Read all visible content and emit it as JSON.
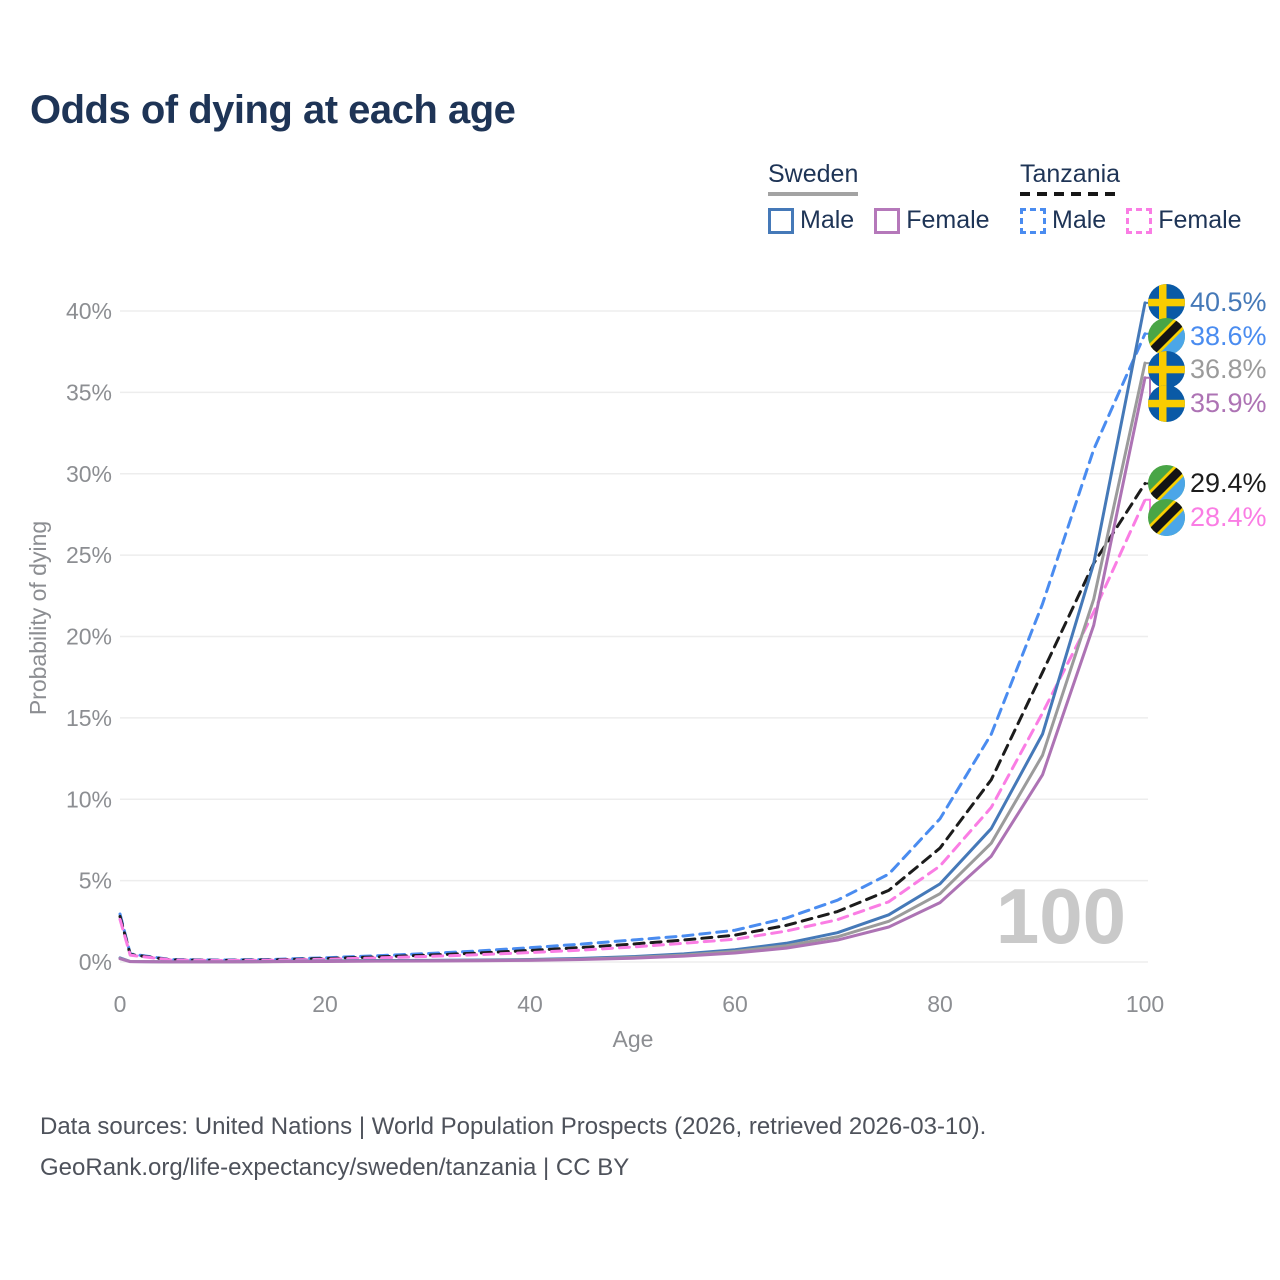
{
  "title": "Odds of dying at each age",
  "legend": {
    "groups": [
      {
        "label": "Sweden",
        "line_style": "solid",
        "underline_color": "#a3a3a3",
        "items": [
          {
            "label": "Male",
            "color": "#4579b8"
          },
          {
            "label": "Female",
            "color": "#b578ba"
          }
        ]
      },
      {
        "label": "Tanzania",
        "line_style": "dashed",
        "underline_color": "#161616",
        "items": [
          {
            "label": "Male",
            "color": "#4a8cf0"
          },
          {
            "label": "Female",
            "color": "#fa7de4"
          }
        ]
      }
    ]
  },
  "annotations": [
    {
      "flag": "sweden",
      "series": "Sweden Male",
      "value": "40.5%",
      "end": 40.5,
      "color": "#4579b8"
    },
    {
      "flag": "tanzania",
      "series": "Tanzania Male",
      "value": "38.6%",
      "end": 38.6,
      "color": "#4a8cf0"
    },
    {
      "flag": "sweden",
      "series": "Sweden Total",
      "value": "36.8%",
      "end": 36.8,
      "color": "#9b9b9b"
    },
    {
      "flag": "sweden",
      "series": "Sweden Female",
      "value": "35.9%",
      "end": 35.9,
      "color": "#ad73b4"
    },
    {
      "flag": "tanzania",
      "series": "Tanzania Total",
      "value": "29.4%",
      "end": 29.4,
      "color": "#1c1c1c"
    },
    {
      "flag": "tanzania",
      "series": "Tanzania Female",
      "value": "28.4%",
      "end": 28.4,
      "color": "#fa7de4"
    }
  ],
  "watermark": "100",
  "axes": {
    "x_label": "Age",
    "y_label": "Probability of dying",
    "x_ticks": [
      0,
      20,
      40,
      60,
      80,
      100
    ],
    "y_ticks_pct": [
      0,
      5,
      10,
      15,
      20,
      25,
      30,
      35,
      40
    ]
  },
  "footer": {
    "line1": "Data sources: United Nations | World Population Prospects (2026, retrieved 2026-03-10).",
    "line2": "GeoRank.org/life-expectancy/sweden/tanzania | CC BY"
  },
  "colors": {
    "title_text": "#1e3456",
    "axis_text": "#8c8e92",
    "gridline": "#ededed",
    "watermark": "#c9c9c9",
    "footer_text": "#4e525b"
  },
  "chart_data": {
    "type": "line",
    "title": "Odds of dying at each age",
    "xlabel": "Age",
    "ylabel": "Probability of dying",
    "xlim": [
      0,
      100
    ],
    "ylim_pct": [
      0,
      42
    ],
    "grid": "horizontal-only",
    "legend_position": "top-right",
    "x": [
      0,
      1,
      5,
      10,
      15,
      20,
      25,
      30,
      35,
      40,
      45,
      50,
      55,
      60,
      65,
      70,
      75,
      80,
      85,
      90,
      95,
      100
    ],
    "series": [
      {
        "name": "Tanzania Male",
        "country": "Tanzania",
        "sex": "male",
        "dash": true,
        "color": "#4a8cf0",
        "values_pct": [
          2.95,
          0.5,
          0.15,
          0.12,
          0.16,
          0.26,
          0.38,
          0.52,
          0.68,
          0.88,
          1.1,
          1.35,
          1.6,
          1.95,
          2.7,
          3.8,
          5.4,
          8.8,
          14.0,
          22.0,
          31.5,
          38.6
        ]
      },
      {
        "name": "Tanzania Total",
        "country": "Tanzania",
        "sex": "both",
        "dash": true,
        "color": "#1c1c1c",
        "values_pct": [
          2.8,
          0.46,
          0.13,
          0.1,
          0.13,
          0.21,
          0.31,
          0.42,
          0.55,
          0.71,
          0.89,
          1.1,
          1.35,
          1.65,
          2.25,
          3.1,
          4.4,
          7.0,
          11.2,
          17.8,
          24.5,
          29.4
        ]
      },
      {
        "name": "Tanzania Female",
        "country": "Tanzania",
        "sex": "female",
        "dash": true,
        "color": "#fa7de4",
        "values_pct": [
          2.62,
          0.42,
          0.12,
          0.09,
          0.11,
          0.17,
          0.25,
          0.34,
          0.45,
          0.58,
          0.73,
          0.92,
          1.15,
          1.4,
          1.9,
          2.6,
          3.7,
          5.9,
          9.5,
          15.3,
          21.5,
          28.4
        ]
      },
      {
        "name": "Sweden Male",
        "country": "Sweden",
        "sex": "male",
        "dash": false,
        "color": "#4579b8",
        "values_pct": [
          0.25,
          0.03,
          0.01,
          0.01,
          0.03,
          0.07,
          0.09,
          0.1,
          0.12,
          0.15,
          0.22,
          0.33,
          0.5,
          0.75,
          1.15,
          1.8,
          2.9,
          4.8,
          8.2,
          14.0,
          24.5,
          40.5
        ]
      },
      {
        "name": "Sweden Total",
        "country": "Sweden",
        "sex": "both",
        "dash": false,
        "color": "#9b9b9b",
        "values_pct": [
          0.22,
          0.03,
          0.01,
          0.01,
          0.02,
          0.05,
          0.07,
          0.08,
          0.1,
          0.13,
          0.18,
          0.28,
          0.42,
          0.65,
          1.0,
          1.55,
          2.5,
          4.2,
          7.3,
          12.7,
          22.3,
          36.8
        ]
      },
      {
        "name": "Sweden Female",
        "country": "Sweden",
        "sex": "female",
        "dash": false,
        "color": "#ad73b4",
        "values_pct": [
          0.2,
          0.02,
          0.01,
          0.01,
          0.02,
          0.03,
          0.05,
          0.06,
          0.08,
          0.1,
          0.15,
          0.23,
          0.36,
          0.55,
          0.85,
          1.35,
          2.15,
          3.65,
          6.5,
          11.5,
          20.7,
          35.9
        ]
      }
    ],
    "end_labels": {
      "Sweden Male": "40.5%",
      "Tanzania Male": "38.6%",
      "Sweden Total": "36.8%",
      "Sweden Female": "35.9%",
      "Tanzania Total": "29.4%",
      "Tanzania Female": "28.4%"
    }
  }
}
